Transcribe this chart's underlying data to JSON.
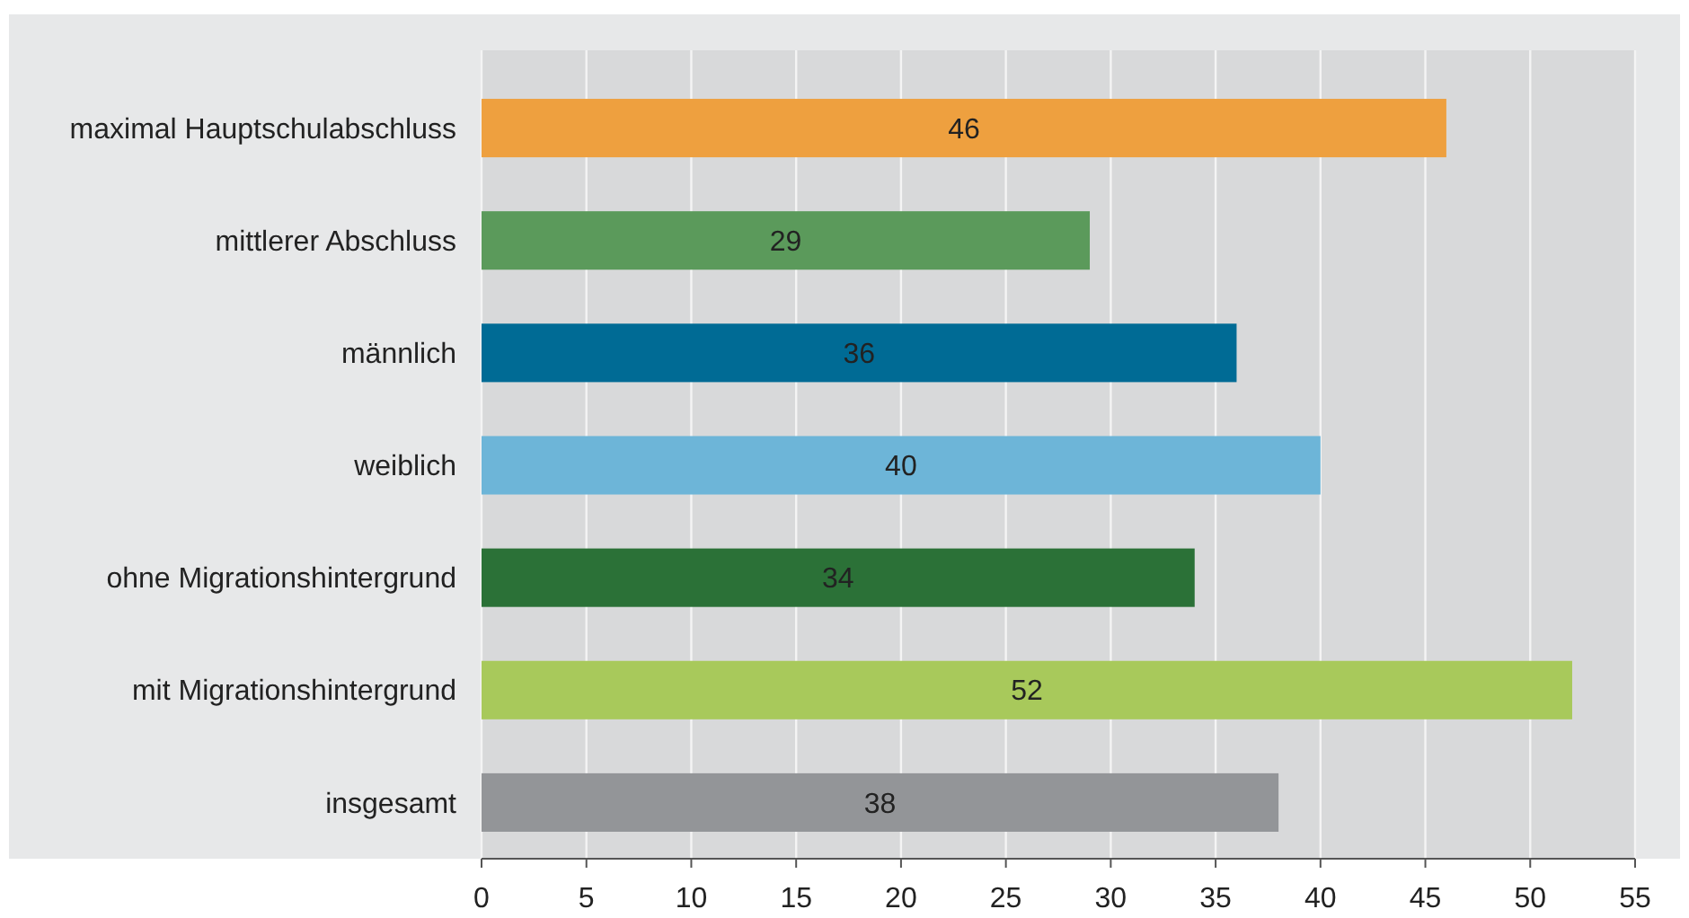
{
  "chart_data": {
    "type": "bar",
    "orientation": "horizontal",
    "categories": [
      "maximal Hauptschulabschluss",
      "mittlerer Abschluss",
      "männlich",
      "weiblich",
      "ohne Migrationshintergrund",
      "mit Migrationshintergrund",
      "insgesamt"
    ],
    "values": [
      46,
      29,
      36,
      40,
      34,
      52,
      38
    ],
    "colors": [
      "#eea03f",
      "#5b9a5b",
      "#006b95",
      "#6db5d8",
      "#2b7137",
      "#a8c95b",
      "#939598"
    ],
    "xlim": [
      0,
      55
    ],
    "xticks": [
      0,
      5,
      10,
      15,
      20,
      25,
      30,
      35,
      40,
      45,
      50,
      55
    ],
    "grid": "x",
    "data_labels": true
  }
}
